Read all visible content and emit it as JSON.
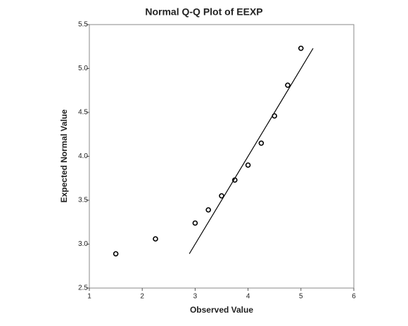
{
  "chart_data": {
    "type": "scatter",
    "title": "Normal Q-Q Plot of EEXP",
    "x_label": "Observed Value",
    "y_label": "Expected Normal Value",
    "x": [
      1.5,
      2.25,
      3.0,
      3.25,
      3.5,
      3.75,
      4.0,
      4.25,
      4.5,
      4.75,
      5.0
    ],
    "series": [
      {
        "color": "#000000",
        "values": [
          2.89,
          3.06,
          3.24,
          3.39,
          3.55,
          3.73,
          3.9,
          4.15,
          4.46,
          4.81,
          5.23
        ]
      }
    ],
    "reference_line": {
      "x": [
        2.89,
        5.23
      ],
      "y": [
        2.89,
        5.23
      ],
      "color": "#000000"
    },
    "xlim": [
      1,
      6
    ],
    "xticks": [
      1,
      2,
      3,
      4,
      5,
      6
    ],
    "ylim": [
      2.5,
      5.5
    ],
    "yticks": [
      2.5,
      {
        "value": 3.0,
        "label": "3.0"
      },
      3.5,
      {
        "value": 4.0,
        "label": "4.0"
      },
      4.5,
      {
        "value": 5.0,
        "label": "5.0"
      },
      5.5
    ]
  }
}
